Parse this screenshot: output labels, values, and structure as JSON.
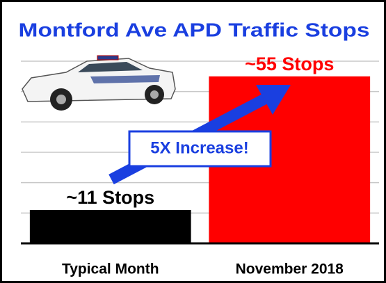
{
  "chart_data": {
    "type": "bar",
    "title": "Montford Ave APD Traffic Stops",
    "categories": [
      "Typical Month",
      "November 2018"
    ],
    "values": [
      11,
      55
    ],
    "value_labels": [
      "~11 Stops",
      "~55 Stops"
    ],
    "colors": [
      "#000000",
      "#ff0000"
    ],
    "value_label_colors": [
      "#000000",
      "#ff0000"
    ],
    "annotation": "5X Increase!",
    "ylim": [
      0,
      60
    ],
    "yticks": [
      0,
      10,
      20,
      30,
      40,
      50,
      60
    ],
    "grid": true
  }
}
